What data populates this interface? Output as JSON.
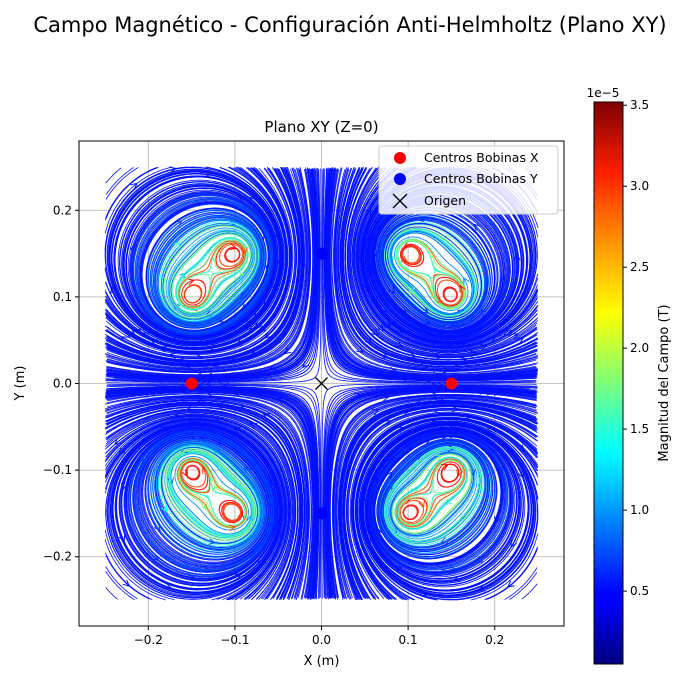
{
  "figure": {
    "title": "Campo Magnético - Configuración Anti-Helmholtz (Plano XY)"
  },
  "chart_data": {
    "type": "streamplot",
    "title": "Plano XY (Z=0)",
    "xlabel": "X (m)",
    "ylabel": "Y (m)",
    "xlim": [
      -0.28,
      0.28
    ],
    "ylim": [
      -0.28,
      0.28
    ],
    "xticks": [
      -0.2,
      -0.1,
      0.0,
      0.1,
      0.2
    ],
    "xtick_labels": [
      "−0.2",
      "−0.1",
      "0.0",
      "0.1",
      "0.2"
    ],
    "yticks": [
      -0.2,
      -0.1,
      0.0,
      0.1,
      0.2
    ],
    "ytick_labels": [
      "−0.2",
      "−0.1",
      "0.0",
      "0.1",
      "0.2"
    ],
    "grid": true,
    "stream_domain": [
      -0.25,
      0.25
    ],
    "vortices": [
      {
        "x": 0.15,
        "y": 0.1,
        "s": 1
      },
      {
        "x": 0.1,
        "y": 0.15,
        "s": 1
      },
      {
        "x": -0.15,
        "y": 0.1,
        "s": -1
      },
      {
        "x": -0.1,
        "y": 0.15,
        "s": -1
      },
      {
        "x": 0.15,
        "y": -0.1,
        "s": -1
      },
      {
        "x": 0.1,
        "y": -0.15,
        "s": -1
      },
      {
        "x": -0.15,
        "y": -0.1,
        "s": 1
      },
      {
        "x": -0.1,
        "y": -0.15,
        "s": 1
      }
    ],
    "series": [
      {
        "name": "Centros Bobinas X",
        "color": "#ff0000",
        "marker": "circle",
        "points": [
          {
            "x": -0.15,
            "y": 0.0
          },
          {
            "x": 0.15,
            "y": 0.0
          }
        ]
      },
      {
        "name": "Centros Bobinas Y",
        "color": "#0000ff",
        "marker": "circle",
        "points": [
          {
            "x": 0.0,
            "y": 0.15
          },
          {
            "x": 0.0,
            "y": -0.15
          }
        ]
      },
      {
        "name": "Origen",
        "color": "#000000",
        "marker": "x",
        "points": [
          {
            "x": 0.0,
            "y": 0.0
          }
        ]
      }
    ],
    "legend": {
      "position": "top-right"
    },
    "colorbar": {
      "label": "Magnitud del Campo (T)",
      "offset_label": "1e−5",
      "colormap": "jet",
      "range": [
        0.05,
        3.52
      ],
      "ticks": [
        0.5,
        1.0,
        1.5,
        2.0,
        2.5,
        3.0,
        3.5
      ],
      "tick_labels": [
        "0.5",
        "1.0",
        "1.5",
        "2.0",
        "2.5",
        "3.0",
        "3.5"
      ]
    }
  }
}
